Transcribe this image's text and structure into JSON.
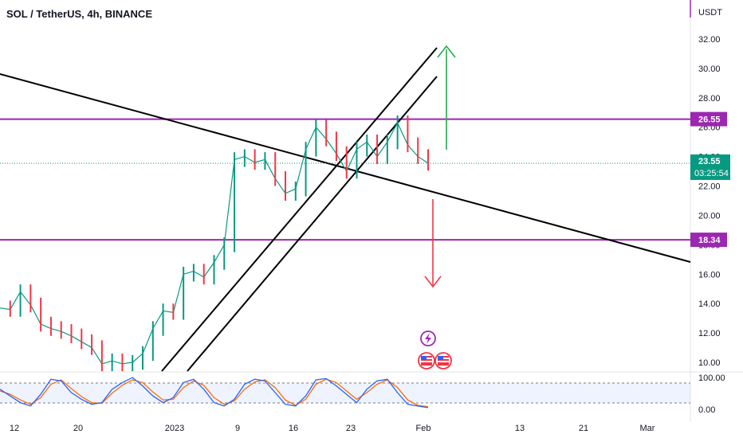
{
  "header": {
    "title": "SOL / TetherUS, 4h, BINANCE"
  },
  "chart_data": {
    "type": "candlestick",
    "title": "SOL / TetherUS, 4h, BINANCE",
    "unit": "USDT",
    "y_ticks": [
      "32.00",
      "30.00",
      "28.00",
      "26.00",
      "24.00",
      "22.00",
      "20.00",
      "18.00",
      "16.00",
      "14.00",
      "12.00",
      "10.00"
    ],
    "ylim": [
      9.5,
      33.5
    ],
    "x_ticks": [
      "12",
      "20",
      "2023",
      "9",
      "16",
      "23",
      "Feb",
      "13",
      "21",
      "Mar"
    ],
    "price_series": [
      [
        "Dec 12",
        13.7
      ],
      [
        "Dec 14",
        13.6
      ],
      [
        "Dec 15",
        14.8
      ],
      [
        "Dec 16",
        13.9
      ],
      [
        "Dec 17",
        12.6
      ],
      [
        "Dec 19",
        12.3
      ],
      [
        "Dec 21",
        12.1
      ],
      [
        "Dec 23",
        11.8
      ],
      [
        "Dec 25",
        11.4
      ],
      [
        "Dec 27",
        11.0
      ],
      [
        "Dec 29",
        9.9
      ],
      [
        "Dec 30",
        10.1
      ],
      [
        "Dec 31",
        9.9
      ],
      [
        "Jan 1",
        10.0
      ],
      [
        "Jan 2",
        10.6
      ],
      [
        "Jan 4",
        12.3
      ],
      [
        "Jan 6",
        13.5
      ],
      [
        "Jan 8",
        13.4
      ],
      [
        "Jan 9",
        16.0
      ],
      [
        "Jan 10",
        16.2
      ],
      [
        "Jan 11",
        15.8
      ],
      [
        "Jan 12",
        16.8
      ],
      [
        "Jan 13",
        18.0
      ],
      [
        "Jan 14",
        23.8
      ],
      [
        "Jan 15",
        24.0
      ],
      [
        "Jan 16",
        23.6
      ],
      [
        "Jan 17",
        23.8
      ],
      [
        "Jan 18",
        22.5
      ],
      [
        "Jan 19",
        21.5
      ],
      [
        "Jan 20",
        21.8
      ],
      [
        "Jan 21",
        24.5
      ],
      [
        "Jan 22",
        26.0
      ],
      [
        "Jan 23",
        25.2
      ],
      [
        "Jan 24",
        24.2
      ],
      [
        "Jan 25",
        23.0
      ],
      [
        "Jan 26",
        24.5
      ],
      [
        "Jan 27",
        25.0
      ],
      [
        "Jan 28",
        24.0
      ],
      [
        "Jan 29",
        25.0
      ],
      [
        "Jan 30",
        26.3
      ],
      [
        "Jan 30b",
        24.8
      ],
      [
        "Jan 31",
        24.0
      ],
      [
        "Feb 1",
        23.55
      ]
    ],
    "horizontal_levels": [
      {
        "value": 26.55,
        "label": "26.55",
        "color": "#9c27b0"
      },
      {
        "value": 18.34,
        "label": "18.34",
        "color": "#9c27b0"
      }
    ],
    "current_price": {
      "value": 23.55,
      "label": "23.55",
      "countdown": "03:25:54",
      "color": "#089981"
    },
    "annotations": {
      "up_arrow_color": "#22ab4a",
      "down_arrow_color": "#f23645",
      "trendline_color": "#000000"
    },
    "stoch_rsi": {
      "ticks": [
        "100.00",
        "0.00"
      ],
      "bands": [
        80,
        20
      ],
      "k_series": [
        60,
        40,
        20,
        10,
        45,
        90,
        85,
        50,
        30,
        15,
        20,
        60,
        80,
        95,
        70,
        40,
        20,
        35,
        80,
        90,
        60,
        20,
        10,
        30,
        75,
        90,
        85,
        50,
        15,
        10,
        40,
        88,
        92,
        70,
        45,
        20,
        60,
        85,
        90,
        50,
        15,
        10,
        5
      ],
      "d_series": [
        55,
        45,
        28,
        15,
        35,
        75,
        88,
        62,
        38,
        20,
        18,
        48,
        72,
        88,
        80,
        52,
        28,
        30,
        65,
        85,
        72,
        35,
        15,
        25,
        60,
        82,
        88,
        65,
        28,
        12,
        30,
        75,
        90,
        80,
        55,
        30,
        50,
        75,
        88,
        65,
        28,
        12,
        8
      ],
      "k_color": "#2962ff",
      "d_color": "#ff6d00"
    },
    "icons": [
      "lightning-icon",
      "us-flag-icon",
      "us-flag-icon"
    ]
  }
}
